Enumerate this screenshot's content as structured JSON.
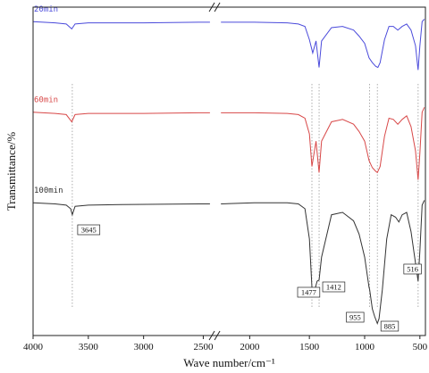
{
  "chart_data": {
    "type": "line",
    "xlabel": "Wave number/cm⁻¹",
    "ylabel": "Transmittance/%",
    "x_ticks": [
      4000,
      3500,
      3000,
      2500,
      2000,
      1500,
      1000,
      500
    ],
    "x_break": [
      2400,
      2300
    ],
    "xlim": [
      4000,
      450
    ],
    "reversed_x": true,
    "y_ticks_shown": false,
    "grid": false,
    "series": [
      {
        "name": "20min",
        "color": "#4a4adb",
        "offset": 150,
        "points": [
          [
            4000,
            100
          ],
          [
            3800,
            99
          ],
          [
            3700,
            98
          ],
          [
            3650,
            94
          ],
          [
            3620,
            98
          ],
          [
            3500,
            99
          ],
          [
            3000,
            99
          ],
          [
            2500,
            99.5
          ],
          [
            2400,
            99.5
          ],
          [
            2300,
            99.5
          ],
          [
            2000,
            99.5
          ],
          [
            1700,
            99
          ],
          [
            1600,
            98
          ],
          [
            1540,
            96
          ],
          [
            1500,
            85
          ],
          [
            1470,
            74
          ],
          [
            1440,
            84
          ],
          [
            1412,
            62
          ],
          [
            1390,
            84
          ],
          [
            1300,
            95
          ],
          [
            1200,
            96
          ],
          [
            1100,
            93
          ],
          [
            1050,
            88
          ],
          [
            1000,
            82
          ],
          [
            960,
            70
          ],
          [
            930,
            66
          ],
          [
            900,
            63
          ],
          [
            880,
            62
          ],
          [
            860,
            66
          ],
          [
            820,
            85
          ],
          [
            780,
            96
          ],
          [
            740,
            96
          ],
          [
            700,
            93
          ],
          [
            660,
            96
          ],
          [
            620,
            98
          ],
          [
            580,
            93
          ],
          [
            540,
            80
          ],
          [
            516,
            60
          ],
          [
            500,
            80
          ],
          [
            480,
            100
          ],
          [
            460,
            102
          ]
        ]
      },
      {
        "name": "60min",
        "color": "#d84848",
        "offset": 75,
        "points": [
          [
            4000,
            100
          ],
          [
            3800,
            99
          ],
          [
            3700,
            98
          ],
          [
            3650,
            92
          ],
          [
            3620,
            98
          ],
          [
            3500,
            99
          ],
          [
            3000,
            99
          ],
          [
            2500,
            99.5
          ],
          [
            2400,
            99.5
          ],
          [
            2300,
            99.5
          ],
          [
            2000,
            99.5
          ],
          [
            1700,
            99
          ],
          [
            1600,
            98
          ],
          [
            1540,
            95
          ],
          [
            1500,
            82
          ],
          [
            1477,
            55
          ],
          [
            1440,
            76
          ],
          [
            1412,
            50
          ],
          [
            1390,
            76
          ],
          [
            1300,
            92
          ],
          [
            1200,
            94
          ],
          [
            1100,
            90
          ],
          [
            1050,
            84
          ],
          [
            1000,
            76
          ],
          [
            960,
            60
          ],
          [
            930,
            54
          ],
          [
            900,
            51
          ],
          [
            885,
            50
          ],
          [
            860,
            55
          ],
          [
            820,
            80
          ],
          [
            780,
            95
          ],
          [
            740,
            94
          ],
          [
            700,
            90
          ],
          [
            660,
            94
          ],
          [
            620,
            97
          ],
          [
            580,
            88
          ],
          [
            540,
            68
          ],
          [
            516,
            44
          ],
          [
            500,
            66
          ],
          [
            480,
            100
          ],
          [
            460,
            104
          ]
        ]
      },
      {
        "name": "100min",
        "color": "#333333",
        "offset": 0,
        "points": [
          [
            4000,
            100
          ],
          [
            3800,
            99
          ],
          [
            3700,
            98
          ],
          [
            3660,
            95
          ],
          [
            3645,
            90
          ],
          [
            3620,
            97
          ],
          [
            3500,
            98
          ],
          [
            3200,
            98.5
          ],
          [
            2500,
            99
          ],
          [
            2400,
            99
          ],
          [
            2300,
            99
          ],
          [
            2000,
            100
          ],
          [
            1700,
            100
          ],
          [
            1600,
            99
          ],
          [
            1540,
            95
          ],
          [
            1500,
            70
          ],
          [
            1477,
            30
          ],
          [
            1450,
            28
          ],
          [
            1430,
            35
          ],
          [
            1412,
            36
          ],
          [
            1390,
            55
          ],
          [
            1300,
            90
          ],
          [
            1200,
            92
          ],
          [
            1100,
            85
          ],
          [
            1050,
            74
          ],
          [
            1000,
            55
          ],
          [
            960,
            30
          ],
          [
            955,
            28
          ],
          [
            930,
            12
          ],
          [
            910,
            6
          ],
          [
            885,
            0
          ],
          [
            870,
            4
          ],
          [
            840,
            28
          ],
          [
            800,
            70
          ],
          [
            760,
            90
          ],
          [
            720,
            88
          ],
          [
            690,
            84
          ],
          [
            660,
            90
          ],
          [
            620,
            92
          ],
          [
            580,
            76
          ],
          [
            540,
            50
          ],
          [
            516,
            35
          ],
          [
            500,
            60
          ],
          [
            480,
            98
          ],
          [
            460,
            102
          ]
        ]
      }
    ],
    "reference_lines": [
      3645,
      1477,
      1412,
      955,
      885,
      516
    ],
    "annotations": [
      {
        "label": "3645",
        "x": 3645
      },
      {
        "label": "1477",
        "x": 1477
      },
      {
        "label": "1412",
        "x": 1412
      },
      {
        "label": "955",
        "x": 955
      },
      {
        "label": "885",
        "x": 885
      },
      {
        "label": "516",
        "x": 516
      }
    ]
  }
}
